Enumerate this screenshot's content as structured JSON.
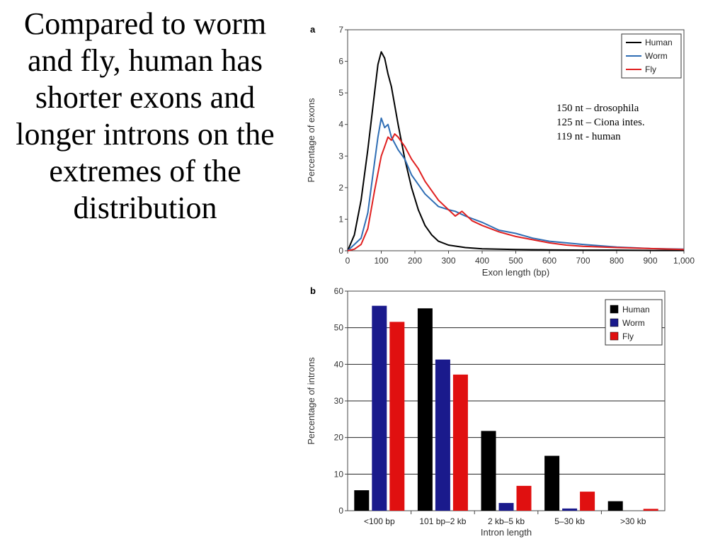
{
  "slide": {
    "title": "Compared to worm and fly, human has shorter exons and longer introns on the extremes of the distribution"
  },
  "annotation": {
    "lines": [
      "150 nt – drosophila",
      "125 nt – Ciona intes.",
      "119 nt - human"
    ]
  },
  "chart_data": [
    {
      "type": "line",
      "panel_label": "a",
      "xlabel": "Exon length (bp)",
      "ylabel": "Percentage of exons",
      "xlim": [
        0,
        1000
      ],
      "ylim": [
        0,
        7
      ],
      "xticks": [
        0,
        100,
        200,
        300,
        400,
        500,
        600,
        700,
        800,
        900,
        1000
      ],
      "xtick_labels": [
        "0",
        "100",
        "200",
        "300",
        "400",
        "500",
        "600",
        "700",
        "800",
        "900",
        "1,000"
      ],
      "yticks": [
        0,
        1,
        2,
        3,
        4,
        5,
        6,
        7
      ],
      "legend_position": "top-right",
      "grid": false,
      "series": [
        {
          "name": "Human",
          "color": "#000000",
          "points": [
            [
              0,
              0
            ],
            [
              20,
              0.5
            ],
            [
              40,
              1.6
            ],
            [
              60,
              3.2
            ],
            [
              80,
              5.0
            ],
            [
              90,
              5.9
            ],
            [
              100,
              6.3
            ],
            [
              110,
              6.1
            ],
            [
              120,
              5.6
            ],
            [
              130,
              5.2
            ],
            [
              150,
              4.0
            ],
            [
              170,
              2.9
            ],
            [
              190,
              2.0
            ],
            [
              210,
              1.3
            ],
            [
              230,
              0.8
            ],
            [
              250,
              0.5
            ],
            [
              270,
              0.3
            ],
            [
              300,
              0.18
            ],
            [
              350,
              0.1
            ],
            [
              400,
              0.06
            ],
            [
              500,
              0.04
            ],
            [
              600,
              0.03
            ],
            [
              700,
              0.02
            ],
            [
              800,
              0.02
            ],
            [
              900,
              0.01
            ],
            [
              1000,
              0.01
            ]
          ]
        },
        {
          "name": "Worm",
          "color": "#2e6db4",
          "points": [
            [
              0,
              0
            ],
            [
              20,
              0.2
            ],
            [
              40,
              0.4
            ],
            [
              60,
              1.2
            ],
            [
              80,
              2.8
            ],
            [
              90,
              3.6
            ],
            [
              100,
              4.2
            ],
            [
              110,
              3.9
            ],
            [
              120,
              4.0
            ],
            [
              130,
              3.6
            ],
            [
              150,
              3.2
            ],
            [
              170,
              2.9
            ],
            [
              190,
              2.4
            ],
            [
              210,
              2.1
            ],
            [
              230,
              1.8
            ],
            [
              250,
              1.6
            ],
            [
              270,
              1.4
            ],
            [
              300,
              1.3
            ],
            [
              320,
              1.25
            ],
            [
              350,
              1.1
            ],
            [
              400,
              0.9
            ],
            [
              450,
              0.65
            ],
            [
              500,
              0.55
            ],
            [
              550,
              0.4
            ],
            [
              600,
              0.3
            ],
            [
              650,
              0.25
            ],
            [
              700,
              0.2
            ],
            [
              800,
              0.12
            ],
            [
              900,
              0.07
            ],
            [
              1000,
              0.05
            ]
          ]
        },
        {
          "name": "Fly",
          "color": "#e02020",
          "points": [
            [
              0,
              0
            ],
            [
              20,
              0.05
            ],
            [
              40,
              0.2
            ],
            [
              60,
              0.7
            ],
            [
              80,
              1.9
            ],
            [
              100,
              3.0
            ],
            [
              110,
              3.3
            ],
            [
              120,
              3.6
            ],
            [
              130,
              3.5
            ],
            [
              140,
              3.7
            ],
            [
              150,
              3.6
            ],
            [
              170,
              3.3
            ],
            [
              190,
              2.9
            ],
            [
              210,
              2.6
            ],
            [
              230,
              2.2
            ],
            [
              250,
              1.9
            ],
            [
              270,
              1.6
            ],
            [
              300,
              1.3
            ],
            [
              320,
              1.1
            ],
            [
              340,
              1.25
            ],
            [
              370,
              0.95
            ],
            [
              400,
              0.8
            ],
            [
              450,
              0.6
            ],
            [
              500,
              0.45
            ],
            [
              550,
              0.35
            ],
            [
              600,
              0.25
            ],
            [
              650,
              0.18
            ],
            [
              700,
              0.14
            ],
            [
              800,
              0.1
            ],
            [
              900,
              0.07
            ],
            [
              1000,
              0.04
            ]
          ]
        }
      ]
    },
    {
      "type": "bar",
      "panel_label": "b",
      "xlabel": "Intron length",
      "ylabel": "Percentage of introns",
      "ylim": [
        0,
        60
      ],
      "yticks": [
        0,
        10,
        20,
        30,
        40,
        50,
        60
      ],
      "categories": [
        "<100 bp",
        "101 bp–2 kb",
        "2 kb–5 kb",
        "5–30 kb",
        ">30 kb"
      ],
      "legend_position": "top-right",
      "grid": true,
      "series": [
        {
          "name": "Human",
          "color": "#000000",
          "values": [
            5.6,
            55.3,
            21.8,
            15.0,
            2.6
          ]
        },
        {
          "name": "Worm",
          "color": "#1a1a8c",
          "values": [
            56.0,
            41.3,
            2.1,
            0.6,
            0.0
          ]
        },
        {
          "name": "Fly",
          "color": "#e01010",
          "values": [
            51.6,
            37.2,
            6.8,
            5.2,
            0.5
          ]
        }
      ]
    }
  ]
}
